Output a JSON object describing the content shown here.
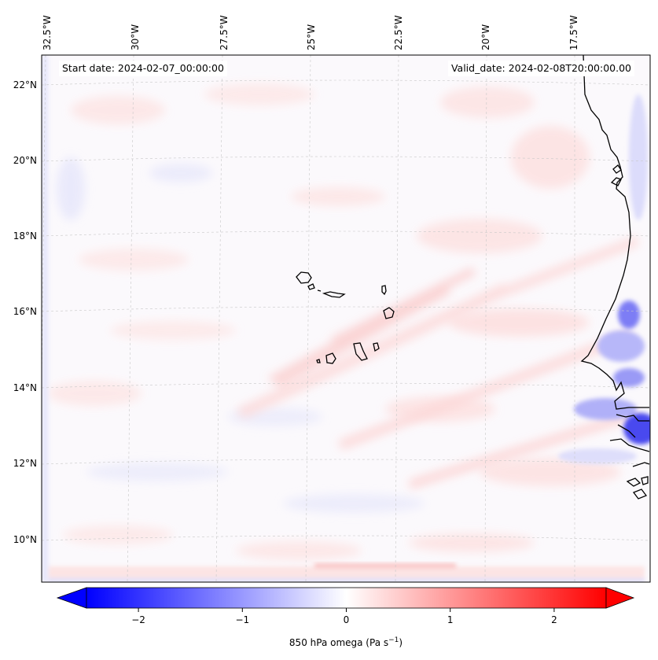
{
  "header": {
    "start_date": "Start date: 2024-02-07_00:00:00",
    "valid_date": "Valid_date: 2024-02-08T20:00:00.00"
  },
  "longitude_labels": [
    "32.5°W",
    "30°W",
    "27.5°W",
    "25°W",
    "22.5°W",
    "20°W",
    "17.5°W"
  ],
  "latitude_labels": [
    "22°N",
    "20°N",
    "18°N",
    "16°N",
    "14°N",
    "12°N",
    "10°N"
  ],
  "colorbar": {
    "ticks": [
      "−2",
      "−1",
      "0",
      "1",
      "2"
    ],
    "tick_values": [
      -2,
      -1,
      0,
      1,
      2
    ],
    "range": [
      -2.5,
      2.5
    ],
    "label": "850 hPa omega (Pa s",
    "label_sup": "−1",
    "label_end": ")",
    "colors": {
      "low": "#0000ff",
      "mid": "#ffffff",
      "high": "#ff0000"
    }
  },
  "map": {
    "extent_lon": [
      -33,
      -15.5
    ],
    "extent_lat": [
      8.8,
      22.8
    ],
    "field": "850 hPa omega",
    "islands": [
      "Santo Antão",
      "São Vicente",
      "Santa Luzia",
      "São Nicolau",
      "Sal",
      "Boa Vista",
      "Maio",
      "Santiago",
      "Fogo",
      "Brava"
    ]
  }
}
